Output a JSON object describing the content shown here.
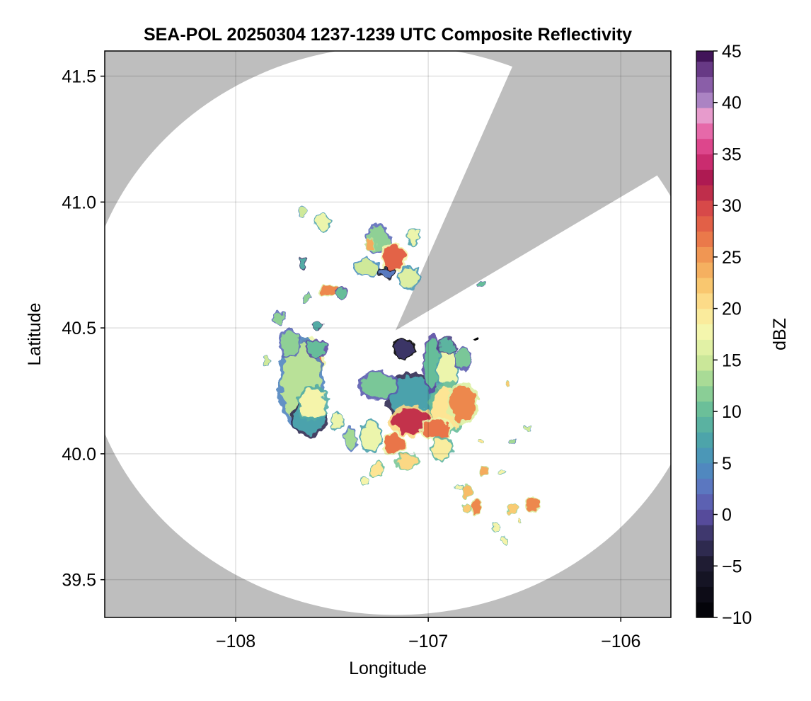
{
  "chart_data": {
    "type": "heatmap",
    "title": "SEA-POL 20250304 1237-1239 UTC Composite Reflectivity",
    "xlabel": "Longitude",
    "ylabel": "Latitude",
    "xlim": [
      -108.68,
      -105.74
    ],
    "ylim": [
      39.35,
      41.6
    ],
    "xticks": [
      -108,
      -107,
      -106
    ],
    "xtick_labels": [
      "−108",
      "−107",
      "−106"
    ],
    "yticks": [
      39.5,
      40.0,
      40.5,
      41.0,
      41.5
    ],
    "ytick_labels": [
      "39.5",
      "40.0",
      "40.5",
      "41.0",
      "41.5"
    ],
    "grid": true,
    "background_color": "#bebebe",
    "radar_coverage": {
      "center": [
        -107.17,
        40.49
      ],
      "range_deg_lon": 1.62,
      "range_deg_lat": 1.13,
      "blocked_sector_azimuth_deg": [
        22,
        57
      ],
      "fill_color": "#ffffff"
    },
    "colorbar": {
      "label": "dBZ",
      "vmin": -10,
      "vmax": 45,
      "step": 1.5,
      "ticks": [
        -10,
        -5,
        0,
        5,
        10,
        15,
        20,
        25,
        30,
        35,
        40,
        45
      ],
      "tick_labels": [
        "−10",
        "−5",
        "0",
        "5",
        "10",
        "15",
        "20",
        "25",
        "30",
        "35",
        "40",
        "45"
      ],
      "colormap_stops": [
        {
          "v": -10,
          "c": "#000004"
        },
        {
          "v": -5,
          "c": "#1c1a2e"
        },
        {
          "v": -2,
          "c": "#3b3566"
        },
        {
          "v": 0,
          "c": "#5a4ea3"
        },
        {
          "v": 2.5,
          "c": "#5d74c0"
        },
        {
          "v": 5,
          "c": "#4a90be"
        },
        {
          "v": 7.5,
          "c": "#4da6a8"
        },
        {
          "v": 10,
          "c": "#66bd9a"
        },
        {
          "v": 12.5,
          "c": "#99d594"
        },
        {
          "v": 15,
          "c": "#cfe99a"
        },
        {
          "v": 17.5,
          "c": "#f3f8b0"
        },
        {
          "v": 20,
          "c": "#fde594"
        },
        {
          "v": 22.5,
          "c": "#f8c46b"
        },
        {
          "v": 25,
          "c": "#f19b54"
        },
        {
          "v": 27.5,
          "c": "#e76b46"
        },
        {
          "v": 30,
          "c": "#d54549"
        },
        {
          "v": 32.5,
          "c": "#a9174d"
        },
        {
          "v": 35,
          "c": "#d8357e"
        },
        {
          "v": 37.5,
          "c": "#e76fae"
        },
        {
          "v": 39,
          "c": "#e7a4d2"
        },
        {
          "v": 40,
          "c": "#b089c7"
        },
        {
          "v": 42.5,
          "c": "#7a4c9b"
        },
        {
          "v": 45,
          "c": "#3b0e52"
        }
      ]
    },
    "echo_cells": [
      {
        "lon": -107.62,
        "lat": 40.37,
        "rx": 0.07,
        "ry": 0.08,
        "dbz": 27
      },
      {
        "lon": -107.66,
        "lat": 40.28,
        "rx": 0.1,
        "ry": 0.16,
        "dbz": 14
      },
      {
        "lon": -107.72,
        "lat": 40.44,
        "rx": 0.05,
        "ry": 0.05,
        "dbz": 12
      },
      {
        "lon": -107.62,
        "lat": 40.14,
        "rx": 0.08,
        "ry": 0.06,
        "dbz": 7
      },
      {
        "lon": -107.58,
        "lat": 40.42,
        "rx": 0.05,
        "ry": 0.03,
        "dbz": 10
      },
      {
        "lon": -107.6,
        "lat": 40.2,
        "rx": 0.07,
        "ry": 0.06,
        "dbz": 18
      },
      {
        "lon": -107.78,
        "lat": 40.54,
        "rx": 0.03,
        "ry": 0.02,
        "dbz": 12
      },
      {
        "lon": -107.84,
        "lat": 40.37,
        "rx": 0.02,
        "ry": 0.015,
        "dbz": 15
      },
      {
        "lon": -107.51,
        "lat": 40.65,
        "rx": 0.05,
        "ry": 0.02,
        "dbz": 26
      },
      {
        "lon": -107.45,
        "lat": 40.64,
        "rx": 0.03,
        "ry": 0.02,
        "dbz": 10
      },
      {
        "lon": -107.63,
        "lat": 40.62,
        "rx": 0.02,
        "ry": 0.015,
        "dbz": 12
      },
      {
        "lon": -107.65,
        "lat": 40.76,
        "rx": 0.02,
        "ry": 0.02,
        "dbz": 8
      },
      {
        "lon": -107.55,
        "lat": 40.92,
        "rx": 0.04,
        "ry": 0.03,
        "dbz": 17
      },
      {
        "lon": -107.65,
        "lat": 40.96,
        "rx": 0.02,
        "ry": 0.015,
        "dbz": 15
      },
      {
        "lon": -107.58,
        "lat": 40.51,
        "rx": 0.02,
        "ry": 0.015,
        "dbz": 8
      },
      {
        "lon": -107.26,
        "lat": 40.85,
        "rx": 0.06,
        "ry": 0.05,
        "dbz": 12
      },
      {
        "lon": -107.18,
        "lat": 40.78,
        "rx": 0.06,
        "ry": 0.05,
        "dbz": 28
      },
      {
        "lon": -107.1,
        "lat": 40.7,
        "rx": 0.05,
        "ry": 0.04,
        "dbz": 16
      },
      {
        "lon": -107.32,
        "lat": 40.74,
        "rx": 0.06,
        "ry": 0.03,
        "dbz": 15
      },
      {
        "lon": -107.22,
        "lat": 40.72,
        "rx": 0.04,
        "ry": 0.02,
        "dbz": 3
      },
      {
        "lon": -107.08,
        "lat": 40.86,
        "rx": 0.03,
        "ry": 0.03,
        "dbz": 17
      },
      {
        "lon": -107.3,
        "lat": 40.83,
        "rx": 0.03,
        "ry": 0.02,
        "dbz": 24
      },
      {
        "lon": -107.13,
        "lat": 40.42,
        "rx": 0.05,
        "ry": 0.035,
        "dbz": -2
      },
      {
        "lon": -107.08,
        "lat": 40.22,
        "rx": 0.12,
        "ry": 0.09,
        "dbz": 7
      },
      {
        "lon": -107.26,
        "lat": 40.27,
        "rx": 0.09,
        "ry": 0.05,
        "dbz": 11
      },
      {
        "lon": -106.98,
        "lat": 40.36,
        "rx": 0.04,
        "ry": 0.1,
        "dbz": 10
      },
      {
        "lon": -106.9,
        "lat": 40.33,
        "rx": 0.05,
        "ry": 0.08,
        "dbz": 17
      },
      {
        "lon": -106.9,
        "lat": 40.18,
        "rx": 0.08,
        "ry": 0.09,
        "dbz": 20
      },
      {
        "lon": -106.82,
        "lat": 40.2,
        "rx": 0.07,
        "ry": 0.07,
        "dbz": 26
      },
      {
        "lon": -107.09,
        "lat": 40.13,
        "rx": 0.1,
        "ry": 0.05,
        "dbz": 31
      },
      {
        "lon": -106.96,
        "lat": 40.1,
        "rx": 0.07,
        "ry": 0.04,
        "dbz": 27
      },
      {
        "lon": -107.18,
        "lat": 40.04,
        "rx": 0.05,
        "ry": 0.04,
        "dbz": 27
      },
      {
        "lon": -107.11,
        "lat": 39.97,
        "rx": 0.05,
        "ry": 0.03,
        "dbz": 21
      },
      {
        "lon": -106.93,
        "lat": 40.02,
        "rx": 0.05,
        "ry": 0.04,
        "dbz": 19
      },
      {
        "lon": -107.3,
        "lat": 40.07,
        "rx": 0.05,
        "ry": 0.06,
        "dbz": 17
      },
      {
        "lon": -107.4,
        "lat": 40.06,
        "rx": 0.03,
        "ry": 0.04,
        "dbz": 13
      },
      {
        "lon": -107.47,
        "lat": 40.13,
        "rx": 0.03,
        "ry": 0.03,
        "dbz": 17
      },
      {
        "lon": -107.27,
        "lat": 39.94,
        "rx": 0.03,
        "ry": 0.025,
        "dbz": 20
      },
      {
        "lon": -107.33,
        "lat": 39.89,
        "rx": 0.02,
        "ry": 0.02,
        "dbz": 18
      },
      {
        "lon": -106.9,
        "lat": 40.43,
        "rx": 0.04,
        "ry": 0.03,
        "dbz": 9
      },
      {
        "lon": -106.82,
        "lat": 40.38,
        "rx": 0.04,
        "ry": 0.04,
        "dbz": 11
      },
      {
        "lon": -106.8,
        "lat": 39.85,
        "rx": 0.03,
        "ry": 0.02,
        "dbz": 23
      },
      {
        "lon": -106.84,
        "lat": 39.87,
        "rx": 0.02,
        "ry": 0.015,
        "dbz": 18
      },
      {
        "lon": -106.75,
        "lat": 39.79,
        "rx": 0.025,
        "ry": 0.03,
        "dbz": 26
      },
      {
        "lon": -106.8,
        "lat": 39.78,
        "rx": 0.02,
        "ry": 0.015,
        "dbz": 22
      },
      {
        "lon": -106.71,
        "lat": 39.93,
        "rx": 0.02,
        "ry": 0.015,
        "dbz": 24
      },
      {
        "lon": -106.62,
        "lat": 39.93,
        "rx": 0.015,
        "ry": 0.012,
        "dbz": 18
      },
      {
        "lon": -106.46,
        "lat": 39.8,
        "rx": 0.03,
        "ry": 0.03,
        "dbz": 26
      },
      {
        "lon": -106.56,
        "lat": 39.78,
        "rx": 0.02,
        "ry": 0.015,
        "dbz": 22
      },
      {
        "lon": -106.64,
        "lat": 39.71,
        "rx": 0.015,
        "ry": 0.015,
        "dbz": 18
      },
      {
        "lon": -106.52,
        "lat": 39.74,
        "rx": 0.012,
        "ry": 0.01,
        "dbz": 20
      },
      {
        "lon": -106.61,
        "lat": 39.66,
        "rx": 0.015,
        "ry": 0.012,
        "dbz": 18
      },
      {
        "lon": -106.56,
        "lat": 40.05,
        "rx": 0.015,
        "ry": 0.01,
        "dbz": 13
      },
      {
        "lon": -106.48,
        "lat": 40.1,
        "rx": 0.008,
        "ry": 0.008,
        "dbz": 15
      },
      {
        "lon": -106.59,
        "lat": 40.28,
        "rx": 0.01,
        "ry": 0.01,
        "dbz": 22
      },
      {
        "lon": -106.72,
        "lat": 40.68,
        "rx": 0.015,
        "ry": 0.01,
        "dbz": 10
      },
      {
        "lon": -106.75,
        "lat": 40.45,
        "rx": 0.008,
        "ry": 0.008,
        "dbz": -10
      },
      {
        "lon": -106.73,
        "lat": 40.05,
        "rx": 0.012,
        "ry": 0.012,
        "dbz": 20
      }
    ]
  }
}
